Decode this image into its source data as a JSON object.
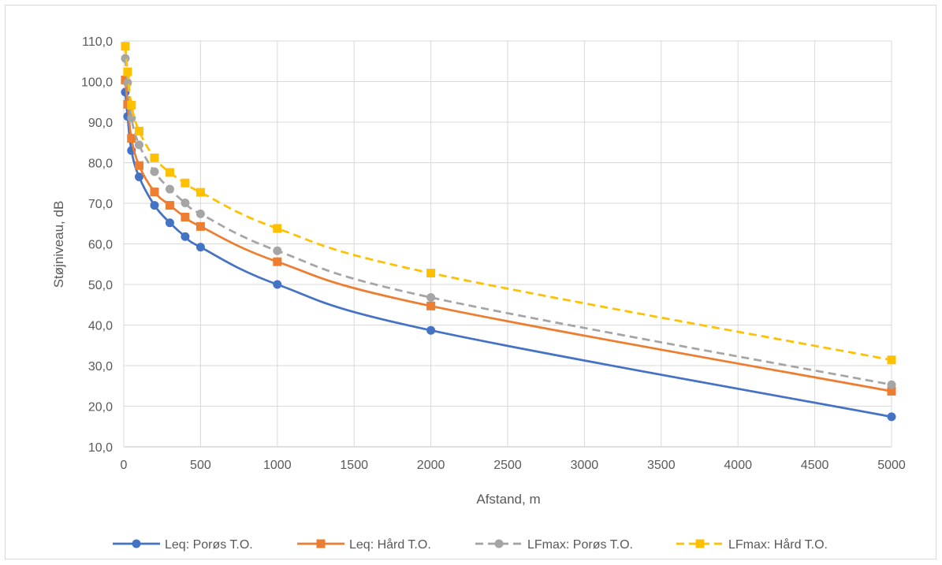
{
  "chart_data": {
    "type": "line",
    "xlabel": "Afstand, m",
    "ylabel": "Støjniveau, dB",
    "xlim": [
      0,
      5000
    ],
    "ylim": [
      10,
      110
    ],
    "x_ticks": [
      0,
      500,
      1000,
      1500,
      2000,
      2500,
      3000,
      3500,
      4000,
      4500,
      5000
    ],
    "y_ticks": [
      "10,0",
      "20,0",
      "30,0",
      "40,0",
      "50,0",
      "60,0",
      "70,0",
      "80,0",
      "90,0",
      "100,0",
      "110,0"
    ],
    "grid": true,
    "legend_position": "bottom",
    "series": [
      {
        "name": "Leq: Porøs T.O.",
        "color": "#4472C4",
        "dash": "solid",
        "marker": "circle",
        "x": [
          10,
          25,
          50,
          100,
          200,
          300,
          400,
          500,
          1000,
          2000,
          5000
        ],
        "y": [
          97.4,
          91.4,
          83.0,
          76.5,
          69.5,
          65.2,
          61.8,
          59.2,
          50.0,
          38.7,
          17.4
        ]
      },
      {
        "name": "Leq: Hård T.O.",
        "color": "#ED7D31",
        "dash": "solid",
        "marker": "square",
        "x": [
          10,
          25,
          50,
          100,
          200,
          300,
          400,
          500,
          1000,
          2000,
          5000
        ],
        "y": [
          100.4,
          94.4,
          86.0,
          79.3,
          72.8,
          69.5,
          66.6,
          64.3,
          55.6,
          44.7,
          23.7
        ]
      },
      {
        "name": "LFmax: Porøs T.O.",
        "color": "#A5A5A5",
        "dash": "dash",
        "marker": "circle",
        "x": [
          10,
          25,
          50,
          100,
          200,
          300,
          400,
          500,
          1000,
          2000,
          5000
        ],
        "y": [
          105.7,
          99.7,
          91.0,
          84.4,
          77.8,
          73.5,
          70.1,
          67.4,
          58.3,
          46.8,
          25.3
        ]
      },
      {
        "name": "LFmax: Hård T.O.",
        "color": "#FFC000",
        "dash": "dash",
        "marker": "square",
        "x": [
          10,
          25,
          50,
          100,
          200,
          300,
          400,
          500,
          1000,
          2000,
          5000
        ],
        "y": [
          108.7,
          102.4,
          94.2,
          87.8,
          81.2,
          77.6,
          75.0,
          72.7,
          63.8,
          52.8,
          31.4
        ]
      }
    ]
  }
}
